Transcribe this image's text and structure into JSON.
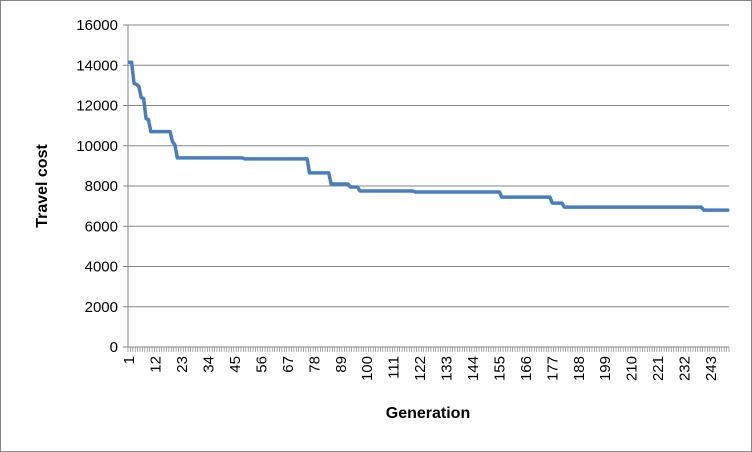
{
  "chart_data": {
    "type": "line",
    "title": "",
    "xlabel": "Generation",
    "ylabel": "Travel cost",
    "ylim": [
      0,
      16000
    ],
    "yticks": [
      0,
      2000,
      4000,
      6000,
      8000,
      10000,
      12000,
      14000,
      16000
    ],
    "xtick_labels": [
      "1",
      "12",
      "23",
      "34",
      "45",
      "56",
      "67",
      "78",
      "89",
      "100",
      "111",
      "122",
      "133",
      "144",
      "155",
      "166",
      "177",
      "188",
      "199",
      "210",
      "221",
      "232",
      "243"
    ],
    "x_count": 250,
    "grid": true,
    "legend": "none",
    "series_color": "#4a7ebb",
    "series": [
      {
        "name": "Travel cost",
        "points": [
          [
            1,
            14150
          ],
          [
            2,
            14150
          ],
          [
            3,
            13100
          ],
          [
            4,
            13050
          ],
          [
            5,
            12950
          ],
          [
            6,
            12400
          ],
          [
            7,
            12350
          ],
          [
            8,
            11350
          ],
          [
            9,
            11300
          ],
          [
            10,
            10700
          ],
          [
            11,
            10700
          ],
          [
            18,
            10700
          ],
          [
            19,
            10200
          ],
          [
            20,
            10050
          ],
          [
            21,
            9400
          ],
          [
            48,
            9400
          ],
          [
            49,
            9350
          ],
          [
            75,
            9350
          ],
          [
            76,
            8650
          ],
          [
            84,
            8650
          ],
          [
            85,
            8100
          ],
          [
            92,
            8100
          ],
          [
            93,
            7950
          ],
          [
            96,
            7950
          ],
          [
            97,
            7750
          ],
          [
            119,
            7750
          ],
          [
            120,
            7700
          ],
          [
            155,
            7700
          ],
          [
            156,
            7450
          ],
          [
            176,
            7450
          ],
          [
            177,
            7150
          ],
          [
            181,
            7150
          ],
          [
            182,
            6950
          ],
          [
            239,
            6950
          ],
          [
            240,
            6800
          ],
          [
            250,
            6800
          ]
        ]
      }
    ]
  }
}
